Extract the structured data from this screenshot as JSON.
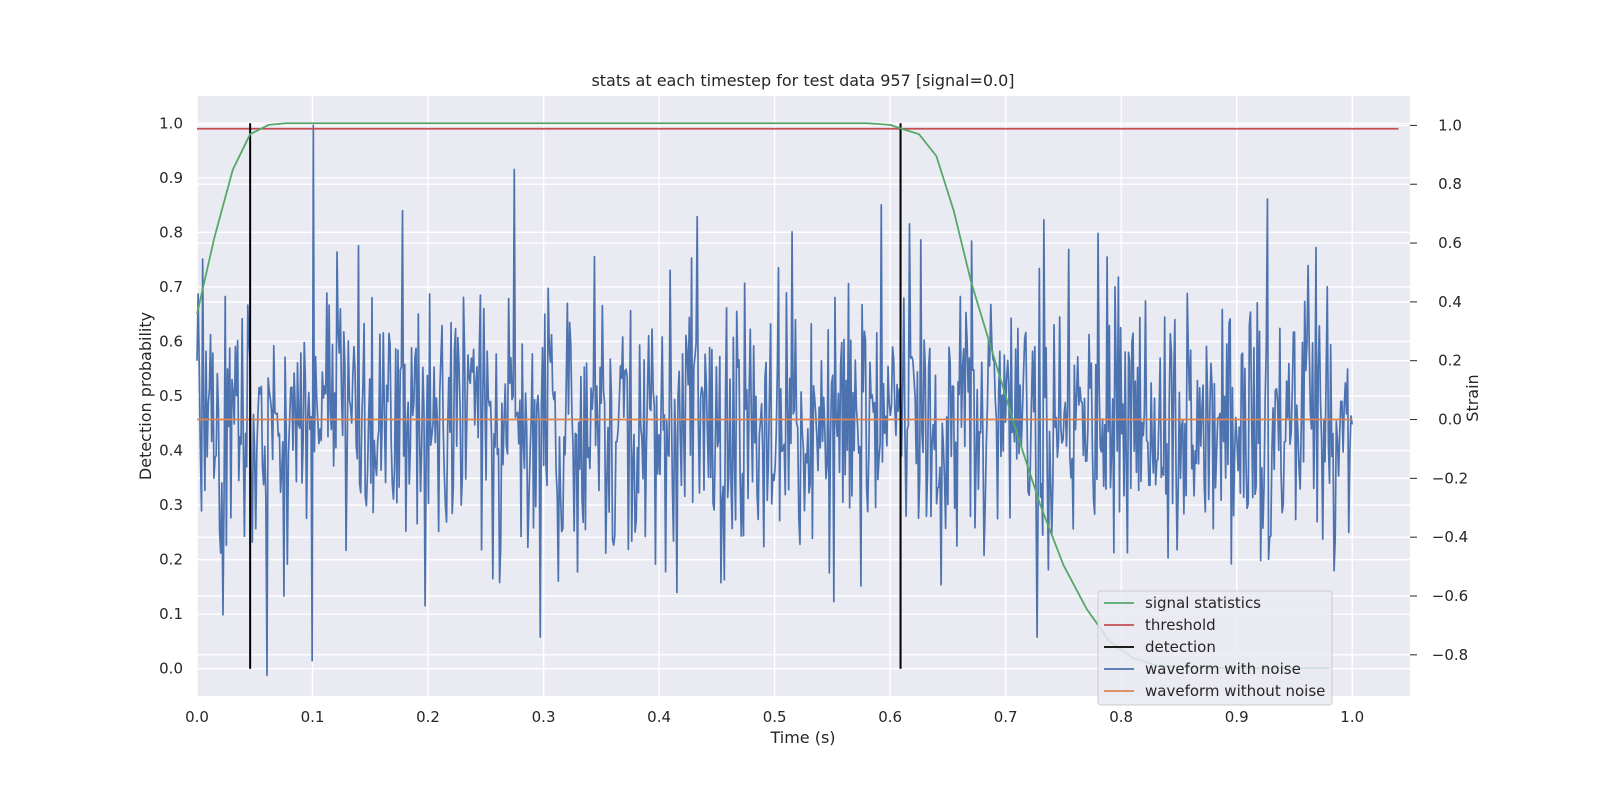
{
  "chart_data": {
    "type": "line",
    "title": "stats at each timestep for test data 957 [signal=0.0]",
    "xlabel": "Time (s)",
    "ylabel_left": "Detection probability",
    "ylabel_right": "Strain",
    "xlim": [
      0.0,
      1.05
    ],
    "ylim_left": [
      -0.05,
      1.05
    ],
    "ylim_right": [
      -0.94,
      1.1
    ],
    "grid": true,
    "legend_placement": "lower right",
    "x_ticks": [
      "0.0",
      "0.1",
      "0.2",
      "0.3",
      "0.4",
      "0.5",
      "0.6",
      "0.7",
      "0.8",
      "0.9",
      "1.0"
    ],
    "y_ticks_left": [
      "0.0",
      "0.1",
      "0.2",
      "0.3",
      "0.4",
      "0.5",
      "0.6",
      "0.7",
      "0.8",
      "0.9",
      "1.0"
    ],
    "y_ticks_right": [
      "−0.8",
      "−0.6",
      "−0.4",
      "−0.2",
      "0.0",
      "0.2",
      "0.4",
      "0.6",
      "0.8",
      "1.0"
    ],
    "series": [
      {
        "name": "signal statistics",
        "axis": "left",
        "color": "#55a868",
        "x": [
          0.0,
          0.015,
          0.031,
          0.046,
          0.062,
          0.077,
          0.1,
          0.2,
          0.3,
          0.4,
          0.5,
          0.58,
          0.6,
          0.61,
          0.625,
          0.64,
          0.655,
          0.67,
          0.69,
          0.71,
          0.73,
          0.75,
          0.77,
          0.79,
          0.81,
          0.83,
          0.86,
          0.9,
          0.94,
          0.98
        ],
        "y": [
          0.65,
          0.79,
          0.915,
          0.98,
          0.997,
          1.0,
          1.0,
          1.0,
          1.0,
          1.0,
          1.0,
          1.0,
          0.997,
          0.99,
          0.98,
          0.94,
          0.84,
          0.71,
          0.57,
          0.43,
          0.3,
          0.19,
          0.11,
          0.05,
          0.02,
          0.006,
          0.002,
          0.001,
          0.001,
          0.001
        ]
      },
      {
        "name": "threshold",
        "axis": "left",
        "color": "#c44e52",
        "x": [
          0.0,
          1.04
        ],
        "y": [
          0.99,
          0.99
        ]
      },
      {
        "name": "detection",
        "axis": "left",
        "color": "#000000",
        "vlines": [
          0.046,
          0.609
        ],
        "y_range": [
          0.0,
          1.0
        ]
      },
      {
        "name": "waveform with noise",
        "axis": "right",
        "color": "#4c72b0",
        "x_range": [
          0.0,
          0.9999
        ],
        "sigma": 0.23,
        "spikes": [
          {
            "x": 0.101,
            "y": 1.0
          },
          {
            "x": 0.1,
            "y": -0.82
          },
          {
            "x": 0.061,
            "y": -0.87
          },
          {
            "x": 0.275,
            "y": 0.85
          },
          {
            "x": 0.297,
            "y": -0.74
          },
          {
            "x": 0.927,
            "y": 0.75
          },
          {
            "x": 0.727,
            "y": -0.74
          },
          {
            "x": 0.592,
            "y": 0.73
          },
          {
            "x": 0.433,
            "y": 0.69
          },
          {
            "x": 0.178,
            "y": 0.71
          }
        ]
      },
      {
        "name": "waveform without noise",
        "axis": "right",
        "color": "#dd8452",
        "x": [
          0.0,
          0.9999
        ],
        "y": [
          0.0,
          0.0
        ]
      }
    ]
  }
}
